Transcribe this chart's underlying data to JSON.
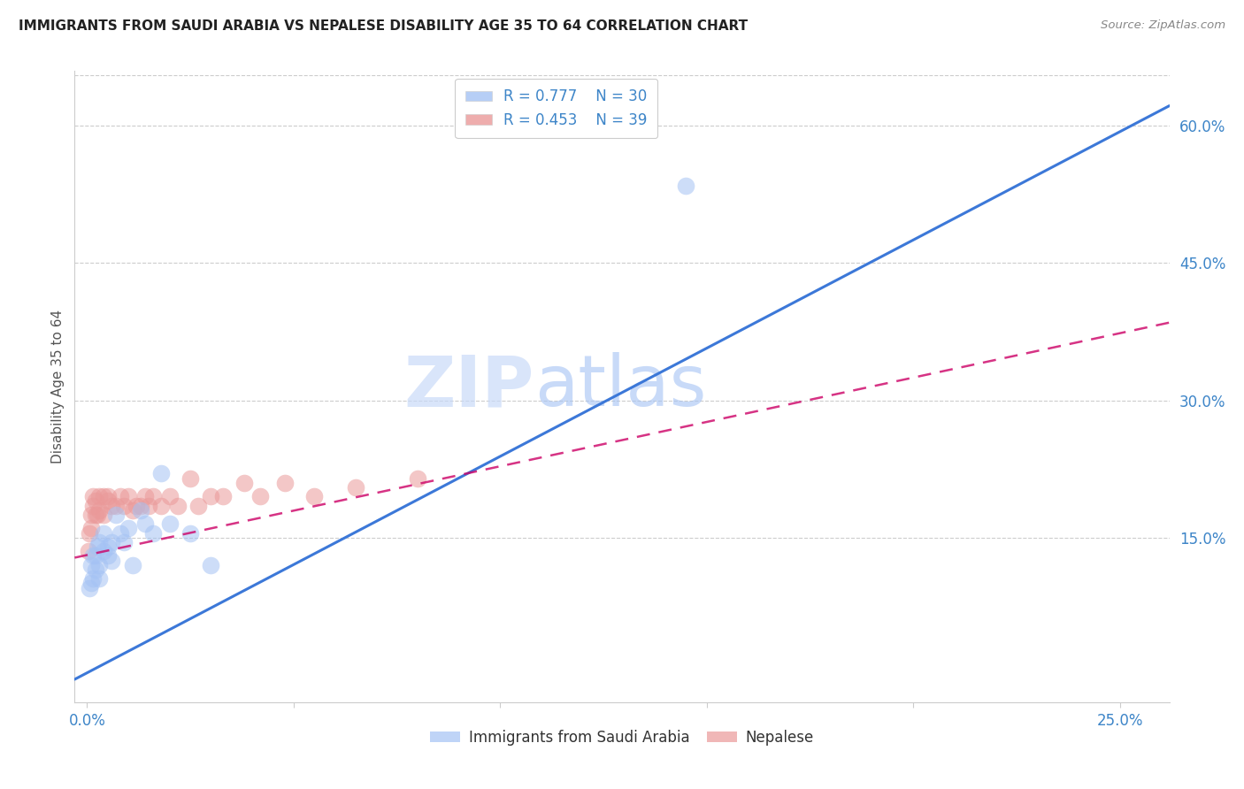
{
  "title": "IMMIGRANTS FROM SAUDI ARABIA VS NEPALESE DISABILITY AGE 35 TO 64 CORRELATION CHART",
  "source": "Source: ZipAtlas.com",
  "ylabel_label": "Disability Age 35 to 64",
  "xlim": [
    -0.003,
    0.262
  ],
  "ylim": [
    -0.03,
    0.66
  ],
  "x_ticks": [
    0.0,
    0.05,
    0.1,
    0.15,
    0.2,
    0.25
  ],
  "x_tick_labels": [
    "0.0%",
    "",
    "",
    "",
    "",
    "25.0%"
  ],
  "y_ticks_right": [
    0.15,
    0.3,
    0.45,
    0.6
  ],
  "y_tick_labels_right": [
    "15.0%",
    "30.0%",
    "45.0%",
    "60.0%"
  ],
  "legend1_r": "0.777",
  "legend1_n": "30",
  "legend2_r": "0.453",
  "legend2_n": "39",
  "blue_color": "#a4c2f4",
  "pink_color": "#ea9999",
  "blue_line_color": "#3c78d8",
  "pink_line_color": "#cc0066",
  "watermark_text": "ZIPatlas",
  "saudi_x": [
    0.0005,
    0.001,
    0.001,
    0.0015,
    0.0015,
    0.002,
    0.002,
    0.0025,
    0.003,
    0.003,
    0.003,
    0.004,
    0.004,
    0.005,
    0.005,
    0.006,
    0.006,
    0.007,
    0.008,
    0.009,
    0.01,
    0.011,
    0.013,
    0.014,
    0.016,
    0.018,
    0.02,
    0.025,
    0.03,
    0.145
  ],
  "saudi_y": [
    0.095,
    0.1,
    0.12,
    0.13,
    0.105,
    0.115,
    0.13,
    0.14,
    0.12,
    0.145,
    0.105,
    0.135,
    0.155,
    0.14,
    0.13,
    0.145,
    0.125,
    0.175,
    0.155,
    0.145,
    0.16,
    0.12,
    0.18,
    0.165,
    0.155,
    0.22,
    0.165,
    0.155,
    0.12,
    0.535
  ],
  "nepal_x": [
    0.0003,
    0.0005,
    0.001,
    0.001,
    0.0015,
    0.0015,
    0.002,
    0.002,
    0.0025,
    0.003,
    0.003,
    0.004,
    0.004,
    0.005,
    0.005,
    0.006,
    0.007,
    0.008,
    0.009,
    0.01,
    0.011,
    0.012,
    0.013,
    0.014,
    0.015,
    0.016,
    0.018,
    0.02,
    0.022,
    0.025,
    0.027,
    0.03,
    0.033,
    0.038,
    0.042,
    0.048,
    0.055,
    0.065,
    0.08
  ],
  "nepal_y": [
    0.135,
    0.155,
    0.16,
    0.175,
    0.185,
    0.195,
    0.175,
    0.19,
    0.175,
    0.18,
    0.195,
    0.195,
    0.175,
    0.19,
    0.195,
    0.185,
    0.185,
    0.195,
    0.185,
    0.195,
    0.18,
    0.185,
    0.185,
    0.195,
    0.185,
    0.195,
    0.185,
    0.195,
    0.185,
    0.215,
    0.185,
    0.195,
    0.195,
    0.21,
    0.195,
    0.21,
    0.195,
    0.205,
    0.215
  ],
  "blue_line_x": [
    -0.003,
    0.262
  ],
  "blue_line_y": [
    -0.005,
    0.622
  ],
  "pink_line_x": [
    -0.003,
    0.262
  ],
  "pink_line_y": [
    0.128,
    0.385
  ]
}
